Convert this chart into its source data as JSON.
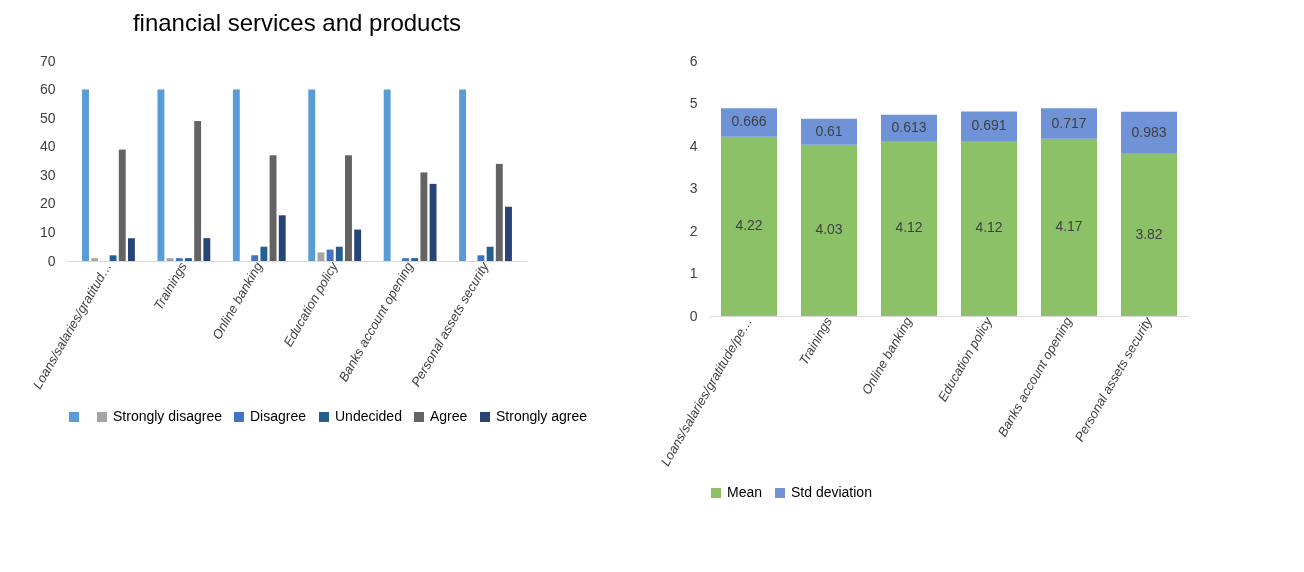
{
  "chart_data": [
    {
      "type": "bar",
      "title": "financial services and products",
      "categories": [
        "Loans/salaries/gratitud…",
        "Trainings",
        "Online banking",
        "Education policy",
        "Banks account opening",
        "Personal assets security"
      ],
      "series": [
        {
          "name": null,
          "color": "#5b9bd5",
          "values": [
            60,
            60,
            60,
            60,
            60,
            60
          ]
        },
        {
          "name": "Strongly disagree",
          "color": "#a5a5a5",
          "values": [
            1,
            1,
            0,
            3,
            0,
            0
          ]
        },
        {
          "name": "Disagree",
          "color": "#4472c4",
          "values": [
            0,
            1,
            2,
            4,
            1,
            2
          ]
        },
        {
          "name": "Undecided",
          "color": "#255e91",
          "values": [
            2,
            1,
            5,
            5,
            1,
            5
          ]
        },
        {
          "name": "Agree",
          "color": "#636363",
          "values": [
            39,
            49,
            37,
            37,
            31,
            34
          ]
        },
        {
          "name": "Strongly agree",
          "color": "#264478",
          "values": [
            8,
            8,
            16,
            11,
            27,
            19
          ]
        }
      ],
      "ylim": [
        0,
        70
      ],
      "yticks": [
        0,
        10,
        20,
        30,
        40,
        50,
        60,
        70
      ],
      "grid": false,
      "legend": "bottom"
    },
    {
      "type": "bar",
      "stacked": true,
      "categories": [
        "Loans/salaries/gratitude/pe…",
        "Trainings",
        "Online banking",
        "Education policy",
        "Banks account opening",
        "Personal assets security"
      ],
      "series": [
        {
          "name": "Mean",
          "color": "#8cc168",
          "values": [
            4.22,
            4.03,
            4.12,
            4.12,
            4.17,
            3.82
          ]
        },
        {
          "name": "Std deviation",
          "color": "#6f93d6",
          "values": [
            0.666,
            0.61,
            0.613,
            0.691,
            0.717,
            0.983
          ]
        }
      ],
      "ylim": [
        0,
        6
      ],
      "yticks": [
        0,
        1,
        2,
        3,
        4,
        5,
        6
      ],
      "grid": false,
      "legend": "bottom",
      "data_labels": true
    }
  ]
}
